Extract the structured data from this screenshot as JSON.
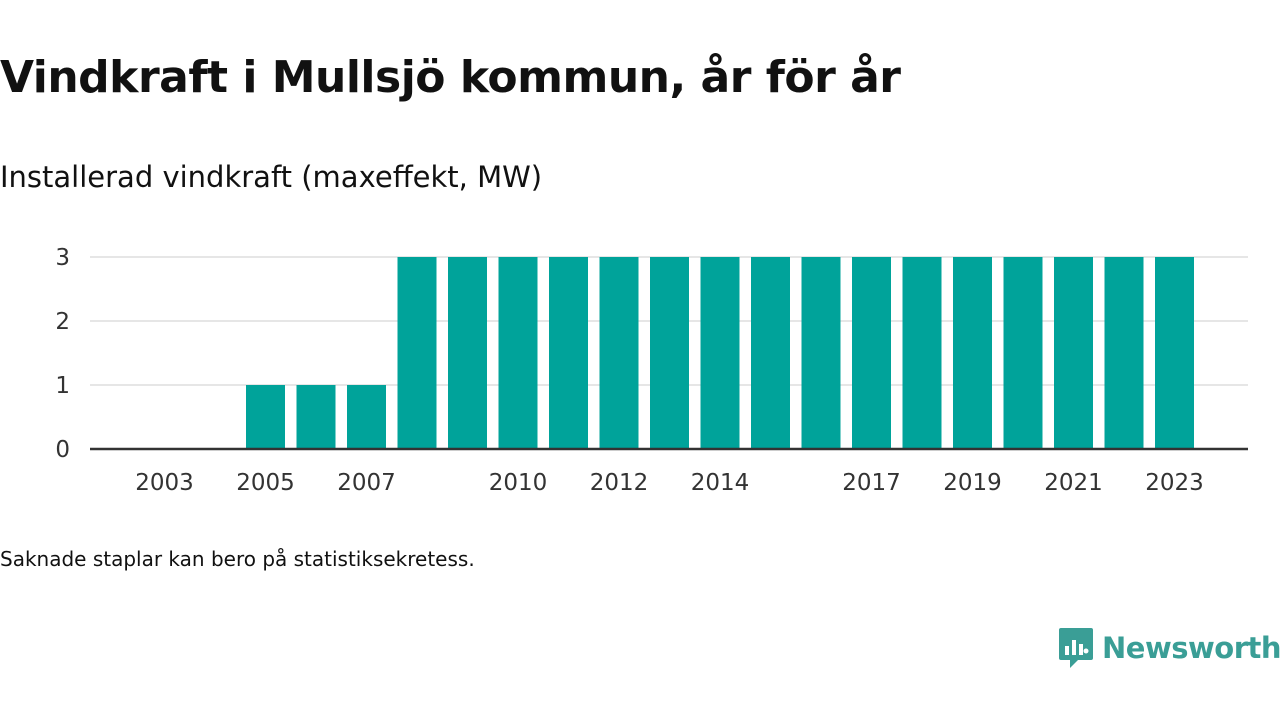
{
  "title": "Vindkraft i Mullsjö kommun, år för år",
  "subtitle": "Installerad vindkraft (maxeffekt, MW)",
  "footnote": "Saknade staplar kan bero på statistiksekretess.",
  "brand": {
    "name": "Newsworthy",
    "color": "#3a9e96",
    "icon": "newsworthy-logo-icon"
  },
  "chart_data": {
    "type": "bar",
    "color": "#00a39a",
    "categories": [
      "2003",
      "2004",
      "2005",
      "2006",
      "2007",
      "2008",
      "2009",
      "2010",
      "2011",
      "2012",
      "2013",
      "2014",
      "2015",
      "2016",
      "2017",
      "2018",
      "2019",
      "2020",
      "2021",
      "2022",
      "2023"
    ],
    "values": [
      0,
      0,
      1,
      1,
      1,
      3,
      3,
      3,
      3,
      3,
      3,
      3,
      3,
      3,
      3,
      3,
      3,
      3,
      3,
      3,
      3
    ],
    "x_tick_labels": [
      "2003",
      "2005",
      "2007",
      "2010",
      "2012",
      "2014",
      "2017",
      "2019",
      "2021",
      "2023"
    ],
    "y_ticks": [
      0,
      1,
      2,
      3
    ],
    "ylim": [
      0,
      3
    ],
    "grid": true,
    "xlabel": "",
    "ylabel": ""
  }
}
